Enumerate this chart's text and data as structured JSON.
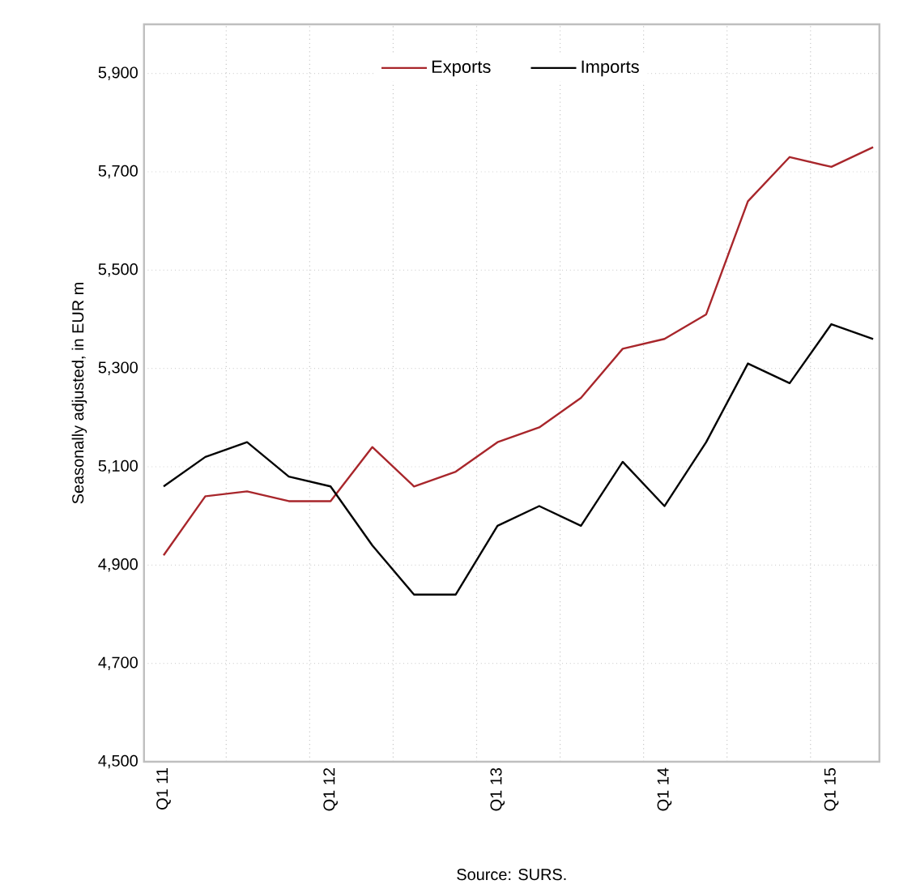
{
  "chart_data": {
    "type": "line",
    "ylabel": "Seasonally adjusted, in EUR m",
    "categories": [
      "Q1 11",
      null,
      null,
      null,
      "Q1 12",
      null,
      null,
      null,
      "Q1 13",
      null,
      null,
      null,
      "Q1 14",
      null,
      null,
      null,
      "Q1 15",
      null
    ],
    "series": [
      {
        "name": "Exports",
        "color": "#a8262b",
        "values": [
          4920,
          5040,
          5050,
          5030,
          5030,
          5140,
          5060,
          5090,
          5150,
          5180,
          5240,
          5340,
          5360,
          5410,
          5640,
          5730,
          5710,
          5750
        ]
      },
      {
        "name": "Imports",
        "color": "#000000",
        "values": [
          5060,
          5120,
          5150,
          5080,
          5060,
          4940,
          4840,
          4840,
          4980,
          5020,
          4980,
          5110,
          5020,
          5150,
          5310,
          5270,
          5390,
          5360
        ]
      }
    ],
    "ylim": [
      4500,
      6000
    ],
    "yticks": [
      {
        "value": 4500,
        "label": "4,500"
      },
      {
        "value": 4700,
        "label": "4,700"
      },
      {
        "value": 4900,
        "label": "4,900"
      },
      {
        "value": 5100,
        "label": "5,100"
      },
      {
        "value": 5300,
        "label": "5,300"
      },
      {
        "value": 5500,
        "label": "5,500"
      },
      {
        "value": 5700,
        "label": "5,700"
      },
      {
        "value": 5900,
        "label": "5,900"
      }
    ],
    "grid": true,
    "legend": "top",
    "marker": "none",
    "line_style": "solid",
    "annotations": [
      "Source: SURS."
    ]
  }
}
